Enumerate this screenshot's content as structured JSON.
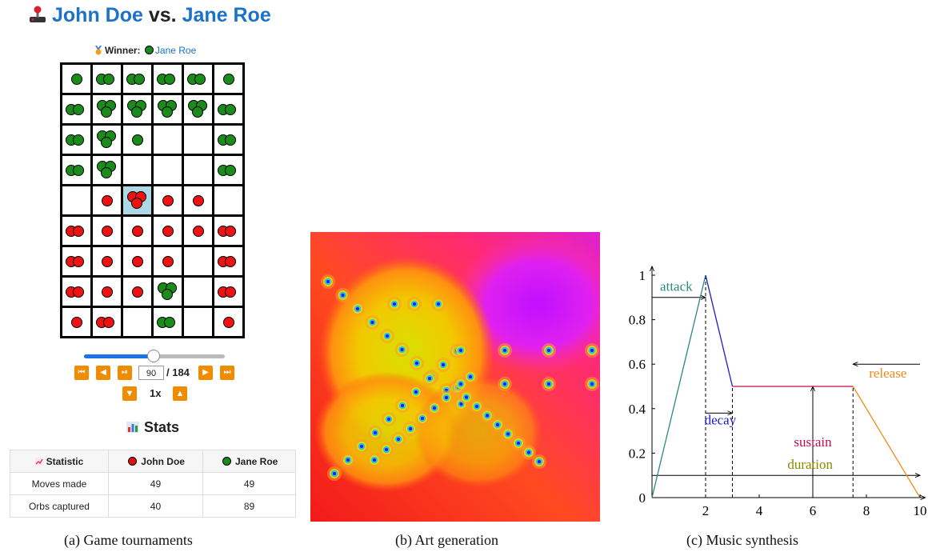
{
  "panel_a": {
    "title_p1": "John Doe",
    "title_vs": "vs.",
    "title_p2": "Jane Roe",
    "winner_label": "Winner:",
    "winner_name": "Jane Roe",
    "board": [
      [
        "g1",
        "g2",
        "g2",
        "g2",
        "g2",
        "g1"
      ],
      [
        "g2",
        "g3",
        "g3",
        "g3",
        "g3",
        "g2"
      ],
      [
        "g2",
        "g3",
        "g1",
        "",
        "",
        "g2"
      ],
      [
        "g2",
        "g3",
        "",
        "",
        "",
        "g2"
      ],
      [
        "",
        "r1",
        "r3",
        "r1",
        "r1",
        ""
      ],
      [
        "r2",
        "r1",
        "r1",
        "r1",
        "r1",
        "r2"
      ],
      [
        "r2",
        "r1",
        "r1",
        "r1",
        "",
        "r2"
      ],
      [
        "r2",
        "r1",
        "r1",
        "g3",
        "",
        "r2"
      ],
      [
        "r1",
        "r2",
        "",
        "g2",
        "",
        "r1"
      ]
    ],
    "highlight_cell": [
      4,
      2
    ],
    "step_current": "90",
    "step_total": "/ 184",
    "speed": "1x",
    "progress": 0.49,
    "stats_title": "Stats",
    "stats": {
      "headers": [
        "Statistic",
        "John Doe",
        "Jane Roe"
      ],
      "rows": [
        [
          "Moves made",
          "49",
          "49"
        ],
        [
          "Orbs captured",
          "40",
          "89"
        ]
      ]
    },
    "colors": {
      "green": "#1a8c1a",
      "red": "#ee1212",
      "link": "#1a73c8",
      "control": "#f08c00"
    }
  },
  "captions": {
    "a": "(a) Game tournaments",
    "b": "(b) Art generation",
    "c": "(c) Music synthesis"
  },
  "chart_data": {
    "type": "line",
    "title": "",
    "xlabel": "",
    "ylabel": "",
    "xlim": [
      0,
      10
    ],
    "ylim": [
      0,
      1
    ],
    "x_ticks": [
      "2",
      "4",
      "6",
      "8",
      "10"
    ],
    "y_ticks": [
      "0",
      "0.2",
      "0.4",
      "0.6",
      "0.8",
      "1"
    ],
    "segments": [
      {
        "name": "attack",
        "points": [
          [
            0,
            0
          ],
          [
            2,
            1
          ]
        ],
        "color": "#2a8a7a"
      },
      {
        "name": "decay",
        "points": [
          [
            2,
            1
          ],
          [
            3,
            0.5
          ]
        ],
        "color": "#1a1ad0"
      },
      {
        "name": "sustain",
        "points": [
          [
            3,
            0.5
          ],
          [
            7.5,
            0.5
          ]
        ],
        "color": "#c0104a"
      },
      {
        "name": "release",
        "points": [
          [
            7.5,
            0.5
          ],
          [
            10,
            0
          ]
        ],
        "color": "#f08a1a"
      }
    ],
    "annotations": [
      {
        "text": "attack",
        "color": "#2a8a7a",
        "x": 0.3,
        "y": 0.93
      },
      {
        "text": "decay",
        "color": "#1a1ad0",
        "x": 2.55,
        "y": 0.33
      },
      {
        "text": "sustain",
        "color": "#c0104a",
        "x": 6.0,
        "y": 0.23
      },
      {
        "text": "duration",
        "color": "#8a8a00",
        "x": 5.9,
        "y": 0.13
      },
      {
        "text": "release",
        "color": "#f08a1a",
        "x": 8.8,
        "y": 0.54
      }
    ],
    "measures": {
      "attack_end": 2,
      "decay_end": 3,
      "sustain_level": 0.5,
      "sustain_mark": 6,
      "release_start": 7.5,
      "duration_level": 0.1,
      "attack_arrow_level": 0.9
    }
  }
}
